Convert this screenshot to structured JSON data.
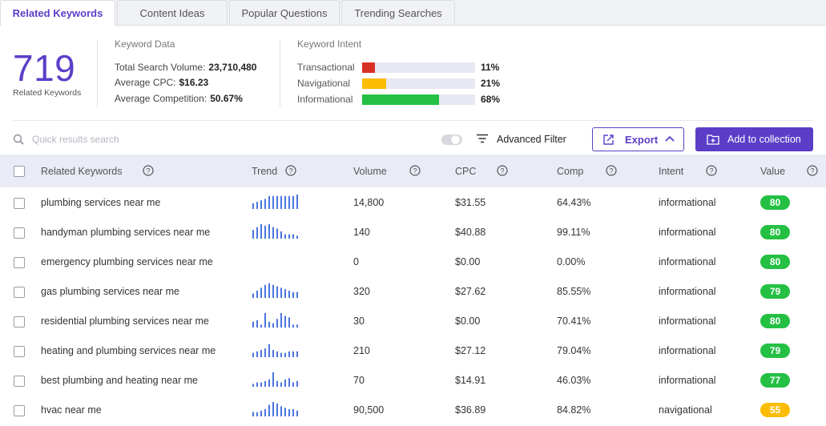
{
  "tabs": [
    "Related Keywords",
    "Content Ideas",
    "Popular Questions",
    "Trending Searches"
  ],
  "summary": {
    "count": "719",
    "count_label": "Related Keywords",
    "keyword_data_title": "Keyword Data",
    "total_volume_label": "Total Search Volume:",
    "total_volume": "23,710,480",
    "avg_cpc_label": "Average CPC:",
    "avg_cpc": "$16.23",
    "avg_comp_label": "Average Competition:",
    "avg_comp": "50.67%",
    "intent_title": "Keyword Intent",
    "intents": [
      {
        "label": "Transactional",
        "pct": "11%",
        "fraction": 0.11,
        "color": "#d93025"
      },
      {
        "label": "Navigational",
        "pct": "21%",
        "fraction": 0.21,
        "color": "#fbbc04"
      },
      {
        "label": "Informational",
        "pct": "68%",
        "fraction": 0.68,
        "color": "#24c043"
      }
    ]
  },
  "toolbar": {
    "search_placeholder": "Quick results search",
    "advanced_filter": "Advanced Filter",
    "export": "Export",
    "add_to_collection": "Add to collection"
  },
  "columns": [
    "Related Keywords",
    "Trend",
    "Volume",
    "CPC",
    "Comp",
    "Intent",
    "Value"
  ],
  "rows": [
    {
      "keyword": "plumbing services near me",
      "trend": [
        4,
        5,
        6,
        7,
        9,
        9,
        9,
        9,
        9,
        9,
        9,
        10
      ],
      "volume": "14,800",
      "cpc": "$31.55",
      "comp": "64.43%",
      "intent": "informational",
      "value": "80",
      "value_color": "#24c043"
    },
    {
      "keyword": "handyman plumbing services near me",
      "trend": [
        6,
        8,
        10,
        9,
        10,
        8,
        7,
        5,
        3,
        3,
        3,
        2
      ],
      "volume": "140",
      "cpc": "$40.88",
      "comp": "99.11%",
      "intent": "informational",
      "value": "80",
      "value_color": "#24c043"
    },
    {
      "keyword": "emergency plumbing services near me",
      "trend": [],
      "volume": "0",
      "cpc": "$0.00",
      "comp": "0.00%",
      "intent": "informational",
      "value": "80",
      "value_color": "#24c043"
    },
    {
      "keyword": "gas plumbing services near me",
      "trend": [
        3,
        5,
        7,
        9,
        10,
        9,
        8,
        7,
        6,
        5,
        4,
        4
      ],
      "volume": "320",
      "cpc": "$27.62",
      "comp": "85.55%",
      "intent": "informational",
      "value": "79",
      "value_color": "#24c043"
    },
    {
      "keyword": "residential plumbing services near me",
      "trend": [
        4,
        5,
        2,
        10,
        4,
        3,
        6,
        10,
        8,
        7,
        2,
        2
      ],
      "volume": "30",
      "cpc": "$0.00",
      "comp": "70.41%",
      "intent": "informational",
      "value": "80",
      "value_color": "#24c043"
    },
    {
      "keyword": "heating and plumbing services near me",
      "trend": [
        3,
        4,
        5,
        6,
        9,
        5,
        4,
        3,
        3,
        4,
        4,
        4
      ],
      "volume": "210",
      "cpc": "$27.12",
      "comp": "79.04%",
      "intent": "informational",
      "value": "79",
      "value_color": "#24c043"
    },
    {
      "keyword": "best plumbing and heating near me",
      "trend": [
        2,
        3,
        3,
        4,
        5,
        10,
        4,
        3,
        5,
        6,
        3,
        4
      ],
      "volume": "70",
      "cpc": "$14.91",
      "comp": "46.03%",
      "intent": "informational",
      "value": "77",
      "value_color": "#24c043"
    },
    {
      "keyword": "hvac near me",
      "trend": [
        3,
        3,
        4,
        5,
        8,
        10,
        9,
        7,
        6,
        5,
        5,
        4
      ],
      "volume": "90,500",
      "cpc": "$36.89",
      "comp": "84.82%",
      "intent": "navigational",
      "value": "55",
      "value_color": "#fbbc04"
    }
  ],
  "colors": {
    "accent": "#5b3ec8",
    "trend_bar": "#4a74e0"
  },
  "icons": [
    "search-icon",
    "filter-icon",
    "export-icon",
    "chevron-up-icon",
    "add-folder-icon",
    "help-icon"
  ]
}
